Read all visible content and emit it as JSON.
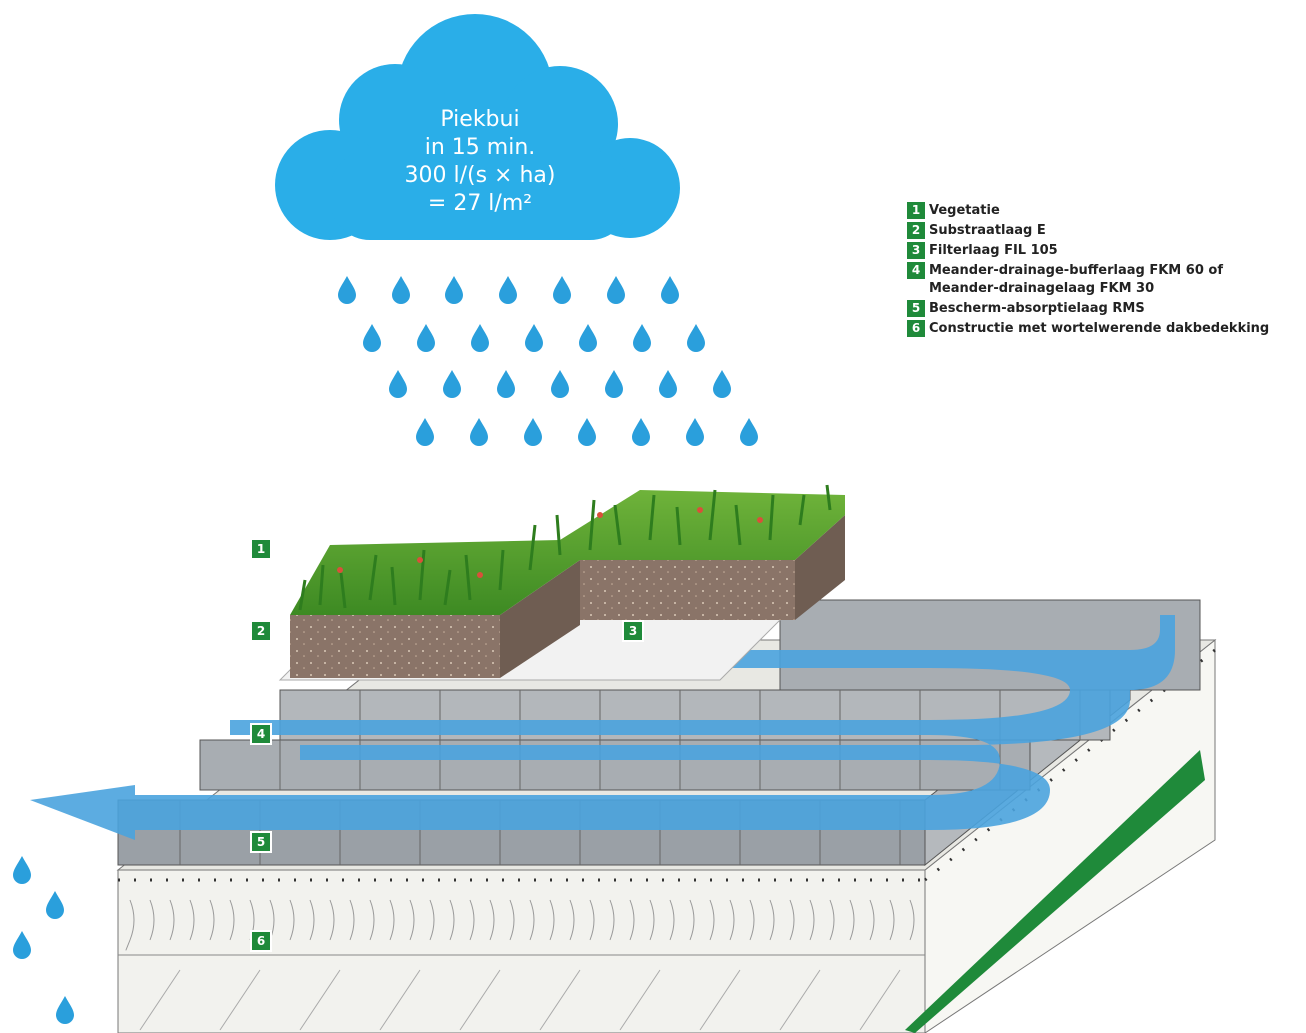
{
  "cloud": {
    "line1": "Piekbui",
    "line2": "in 15 min.",
    "line3": "300 l/(s × ha)",
    "line4": "= 27 l/m²",
    "color": "#2aaee8"
  },
  "legend": {
    "items": [
      {
        "num": "1",
        "text": "Vegetatie"
      },
      {
        "num": "2",
        "text": "Substraatlaag E"
      },
      {
        "num": "3",
        "text": "Filterlaag FIL 105"
      },
      {
        "num": "4",
        "text": "Meander-drainage-bufferlaag FKM 60 of",
        "text2": "Meander-drainagelaag FKM 30"
      },
      {
        "num": "5",
        "text": "Bescherm-absorptielaag RMS"
      },
      {
        "num": "6",
        "text": "Constructie met wortelwerende dakbedekking"
      }
    ],
    "badge_color": "#1f8a3a"
  },
  "markers": [
    "1",
    "2",
    "3",
    "4",
    "5",
    "6"
  ],
  "colors": {
    "water": "#4aa3de",
    "vegetation": "#4e9a2c",
    "substrate": "#8a7468",
    "panel": "#9aa0a6",
    "insulation": "#eeeeea"
  }
}
